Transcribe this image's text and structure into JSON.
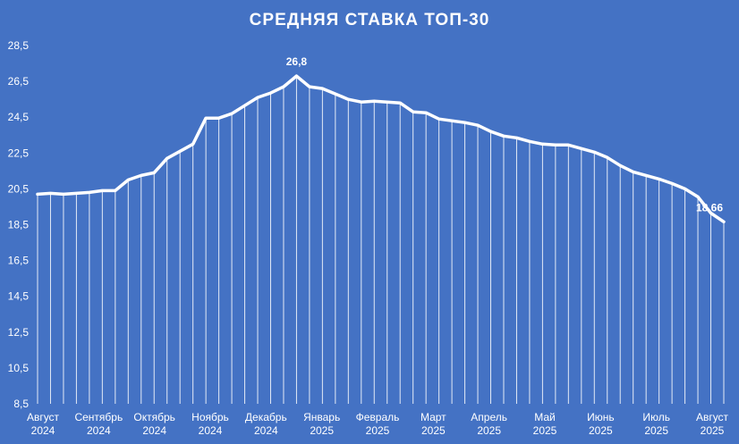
{
  "chart_data": {
    "type": "line",
    "title": "СРЕДНЯЯ СТАВКА ТОП-30",
    "ylim": [
      8.5,
      28.5
    ],
    "yticks": [
      "8,5",
      "10,5",
      "12,5",
      "14,5",
      "16,5",
      "18,5",
      "20,5",
      "22,5",
      "24,5",
      "26,5",
      "28,5"
    ],
    "ytick_values": [
      8.5,
      10.5,
      12.5,
      14.5,
      16.5,
      18.5,
      20.5,
      22.5,
      24.5,
      26.5,
      28.5
    ],
    "x_labels": [
      {
        "month": "Август",
        "year": "2024"
      },
      {
        "month": "Сентябрь",
        "year": "2024"
      },
      {
        "month": "Октябрь",
        "year": "2024"
      },
      {
        "month": "Ноябрь",
        "year": "2024"
      },
      {
        "month": "Декабрь",
        "year": "2024"
      },
      {
        "month": "Январь",
        "year": "2025"
      },
      {
        "month": "Февраль",
        "year": "2025"
      },
      {
        "month": "Март",
        "year": "2025"
      },
      {
        "month": "Апрель",
        "year": "2025"
      },
      {
        "month": "Май",
        "year": "2025"
      },
      {
        "month": "Июнь",
        "year": "2025"
      },
      {
        "month": "Июль",
        "year": "2025"
      },
      {
        "month": "Август",
        "year": "2025"
      }
    ],
    "series": [
      {
        "values": [
          20.2,
          20.25,
          20.2,
          20.25,
          20.3,
          20.4,
          20.4,
          21.0,
          21.25,
          21.4,
          22.2,
          22.6,
          23.0,
          24.45,
          24.45,
          24.7,
          25.15,
          25.6,
          25.85,
          26.2,
          26.8,
          26.2,
          26.1,
          25.8,
          25.5,
          25.35,
          25.4,
          25.35,
          25.3,
          24.8,
          24.75,
          24.4,
          24.3,
          24.2,
          24.05,
          23.7,
          23.45,
          23.35,
          23.15,
          23.0,
          22.95,
          22.95,
          22.75,
          22.55,
          22.25,
          21.8,
          21.45,
          21.25,
          21.05,
          20.8,
          20.5,
          20.05,
          19.15,
          18.66
        ]
      }
    ],
    "data_labels": [
      {
        "index": 20,
        "text": "26,8"
      },
      {
        "index": 53,
        "text": "18,66"
      }
    ],
    "grid": "vertical lines per data point",
    "line_color": "#ffffff",
    "background": "#4472c4"
  }
}
